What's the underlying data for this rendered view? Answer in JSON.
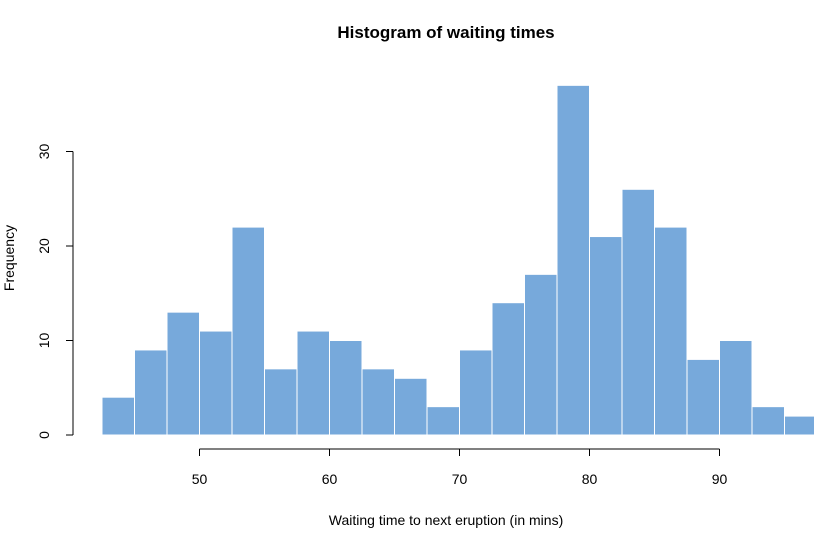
{
  "chart_data": {
    "type": "bar",
    "title": "Histogram of waiting times",
    "xlabel": "Waiting time to next eruption (in mins)",
    "ylabel": "Frequency",
    "bin_width": 2.5,
    "bins": [
      {
        "start": 42.5,
        "end": 45.0,
        "count": 4
      },
      {
        "start": 45.0,
        "end": 47.5,
        "count": 9
      },
      {
        "start": 47.5,
        "end": 50.0,
        "count": 13
      },
      {
        "start": 50.0,
        "end": 52.5,
        "count": 11
      },
      {
        "start": 52.5,
        "end": 55.0,
        "count": 22
      },
      {
        "start": 55.0,
        "end": 57.5,
        "count": 7
      },
      {
        "start": 57.5,
        "end": 60.0,
        "count": 11
      },
      {
        "start": 60.0,
        "end": 62.5,
        "count": 10
      },
      {
        "start": 62.5,
        "end": 65.0,
        "count": 7
      },
      {
        "start": 65.0,
        "end": 67.5,
        "count": 6
      },
      {
        "start": 67.5,
        "end": 70.0,
        "count": 3
      },
      {
        "start": 70.0,
        "end": 72.5,
        "count": 9
      },
      {
        "start": 72.5,
        "end": 75.0,
        "count": 14
      },
      {
        "start": 75.0,
        "end": 77.5,
        "count": 17
      },
      {
        "start": 77.5,
        "end": 80.0,
        "count": 37
      },
      {
        "start": 80.0,
        "end": 82.5,
        "count": 21
      },
      {
        "start": 82.5,
        "end": 85.0,
        "count": 26
      },
      {
        "start": 85.0,
        "end": 87.5,
        "count": 22
      },
      {
        "start": 87.5,
        "end": 90.0,
        "count": 8
      },
      {
        "start": 90.0,
        "end": 92.5,
        "count": 10
      },
      {
        "start": 92.5,
        "end": 95.0,
        "count": 3
      },
      {
        "start": 95.0,
        "end": 97.5,
        "count": 2
      }
    ],
    "x_ticks": [
      50,
      60,
      70,
      80,
      90
    ],
    "y_ticks": [
      0,
      10,
      20,
      30
    ],
    "xlim": [
      42.5,
      97.5
    ],
    "ylim": [
      0,
      37
    ],
    "bar_color": "#77a9db",
    "grid": false,
    "legend": false
  }
}
